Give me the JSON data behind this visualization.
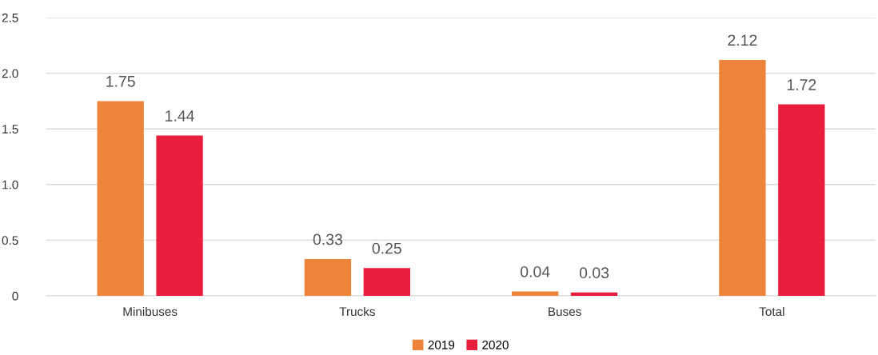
{
  "chart_data": {
    "type": "bar",
    "categories": [
      "Minibuses",
      "Trucks",
      "Buses",
      "Total"
    ],
    "series": [
      {
        "name": "2019",
        "color": "#ed843a",
        "values": [
          1.75,
          0.33,
          0.04,
          2.12
        ]
      },
      {
        "name": "2020",
        "color": "#e81e3c",
        "values": [
          1.44,
          0.25,
          0.03,
          1.72
        ]
      }
    ],
    "ylim": [
      0,
      2.5
    ],
    "yticks": [
      0,
      0.5,
      {
        "value": 1,
        "label": "1.0"
      },
      1.5,
      {
        "value": 2,
        "label": "2.0"
      },
      2.5
    ],
    "grid": "y",
    "legend": "bottom",
    "data_labels": true
  }
}
